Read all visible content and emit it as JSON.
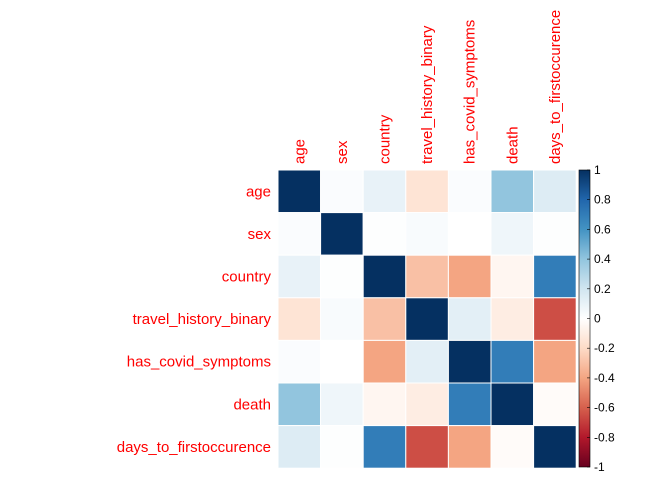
{
  "chart_data": {
    "type": "heatmap",
    "title": "",
    "variables": [
      "age",
      "sex",
      "country",
      "travel_history_binary",
      "has_covid_symptoms",
      "death",
      "days_to_firstoccurence"
    ],
    "matrix": [
      [
        1.0,
        0.02,
        0.1,
        -0.15,
        0.02,
        0.4,
        0.15
      ],
      [
        0.02,
        1.0,
        0.01,
        0.03,
        0.0,
        0.07,
        0.01
      ],
      [
        0.1,
        0.01,
        1.0,
        -0.3,
        -0.4,
        -0.05,
        0.7
      ],
      [
        -0.15,
        0.03,
        -0.3,
        1.0,
        0.12,
        -0.1,
        -0.65
      ],
      [
        0.02,
        0.0,
        -0.4,
        0.12,
        1.0,
        0.7,
        -0.4
      ],
      [
        0.4,
        0.07,
        -0.05,
        -0.1,
        0.7,
        1.0,
        -0.02
      ],
      [
        0.15,
        0.01,
        0.7,
        -0.65,
        -0.4,
        -0.02,
        1.0
      ]
    ],
    "color_scale": {
      "min": -1,
      "max": 1,
      "ticks": [
        "1",
        "0.8",
        "0.6",
        "0.4",
        "0.2",
        "0",
        "-0.2",
        "-0.4",
        "-0.6",
        "-0.8",
        "-1"
      ],
      "tick_values": [
        1,
        0.8,
        0.6,
        0.4,
        0.2,
        0,
        -0.2,
        -0.4,
        -0.6,
        -0.8,
        -1
      ],
      "colors": [
        "#67001F",
        "#B2182B",
        "#D6604D",
        "#F4A582",
        "#FDDBC7",
        "#FFFFFF",
        "#D1E5F0",
        "#92C5DE",
        "#4393C3",
        "#2166AC",
        "#053061"
      ]
    },
    "label_color": "#FF0000",
    "grid": false,
    "legend_position": "right"
  }
}
